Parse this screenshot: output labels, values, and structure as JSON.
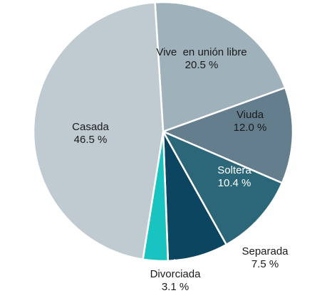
{
  "chart_data": {
    "type": "pie",
    "start_angle_deg": 90,
    "direction": "clockwise",
    "legend": "none",
    "slices": [
      {
        "name": "Vive  en unión libre",
        "value": 20.5,
        "value_label": "20.5 %",
        "color": "#9fb1bb",
        "label_color": "#1a1a1a"
      },
      {
        "name": "Viuda",
        "value": 12.0,
        "value_label": "12.0 %",
        "color": "#657e8d",
        "label_color": "#1a1a1a"
      },
      {
        "name": "Soltera",
        "value": 10.4,
        "value_label": "10.4 %",
        "color": "#2b6779",
        "label_color": "#ffffff"
      },
      {
        "name": "Separada",
        "value": 7.5,
        "value_label": "7.5 %",
        "color": "#0b4560",
        "label_color": "#1a1a1a"
      },
      {
        "name": "Divorciada",
        "value": 3.1,
        "value_label": "3.1 %",
        "color": "#19c3bf",
        "label_color": "#1a1a1a"
      },
      {
        "name": "Casada",
        "value": 46.5,
        "value_label": "46.5 %",
        "color": "#bfcbd1",
        "label_color": "#1a1a1a"
      }
    ]
  }
}
